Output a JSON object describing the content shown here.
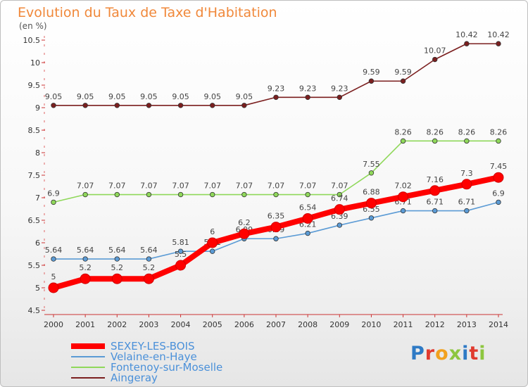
{
  "header": {
    "title": "Evolution du Taux de Taxe d'Habitation",
    "subtitle": "(en %)"
  },
  "logo": {
    "text": "Proxiti",
    "colors": [
      "#2e7ac5",
      "#e03a2f",
      "#f2a11e",
      "#8dc63f",
      "#2e7ac5",
      "#e03a2f",
      "#8dc63f"
    ]
  },
  "chart_data": {
    "type": "line",
    "title": "Evolution du Taux de Taxe d'Habitation",
    "ylabel": "(en %)",
    "x": [
      "2000",
      "2001",
      "2002",
      "2003",
      "2004",
      "2005",
      "2006",
      "2007",
      "2008",
      "2009",
      "2010",
      "2011",
      "2012",
      "2013",
      "2014"
    ],
    "ylim": [
      4.5,
      10.5
    ],
    "yticks": [
      "4.5",
      "5",
      "5.5",
      "6",
      "6.5",
      "7",
      "7.5",
      "8",
      "8.5",
      "9",
      "9.5",
      "10",
      "10.5"
    ],
    "grid": false,
    "legend_position": "bottom-left",
    "series": [
      {
        "name": "Aingeray",
        "color": "#7b1f1f",
        "values": [
          9.05,
          9.05,
          9.05,
          9.05,
          9.05,
          9.05,
          9.05,
          9.23,
          9.23,
          9.23,
          9.59,
          9.59,
          10.07,
          10.42,
          10.42
        ],
        "labels": [
          "9.05",
          "9.05",
          "9.05",
          "9.05",
          "9.05",
          "9.05",
          "9.05",
          "9.23",
          "9.23",
          "9.23",
          "9.59",
          "9.59",
          "10.07",
          "10.42",
          "10.42"
        ]
      },
      {
        "name": "Fontenoy-sur-Moselle",
        "color": "#8fd85a",
        "values": [
          6.9,
          7.07,
          7.07,
          7.07,
          7.07,
          7.07,
          7.07,
          7.07,
          7.07,
          7.07,
          7.55,
          8.26,
          8.26,
          8.26,
          8.26
        ],
        "labels": [
          "6.9",
          "7.07",
          "7.07",
          "7.07",
          "7.07",
          "7.07",
          "7.07",
          "7.07",
          "7.07",
          "7.07",
          "7.55",
          "8.26",
          "8.26",
          "8.26",
          "8.26"
        ]
      },
      {
        "name": "Velaine-en-Haye",
        "color": "#5b9bd5",
        "values": [
          5.64,
          5.64,
          5.64,
          5.64,
          5.81,
          5.81,
          6.09,
          6.09,
          6.21,
          6.39,
          6.55,
          6.71,
          6.71,
          6.71,
          6.9
        ],
        "labels": [
          "5.64",
          "5.64",
          "5.64",
          "5.64",
          "5.81",
          "5.81",
          "6.09",
          "6.09",
          "6.21",
          "6.39",
          "6.55",
          "6.71",
          "6.71",
          "6.71",
          "6.9"
        ]
      },
      {
        "name": "SEXEY-LES-BOIS",
        "color": "#ff0000",
        "values": [
          5,
          5.2,
          5.2,
          5.2,
          5.5,
          6,
          6.2,
          6.35,
          6.54,
          6.74,
          6.88,
          7.02,
          7.16,
          7.3,
          7.45
        ],
        "labels": [
          "5",
          "5.2",
          "5.2",
          "5.2",
          "5.5",
          "6",
          "6.2",
          "6.35",
          "6.54",
          "6.74",
          "6.88",
          "7.02",
          "7.16",
          "7.3",
          "7.45"
        ]
      }
    ],
    "legend": [
      "SEXEY-LES-BOIS",
      "Velaine-en-Haye",
      "Fontenoy-sur-Moselle",
      "Aingeray"
    ]
  }
}
